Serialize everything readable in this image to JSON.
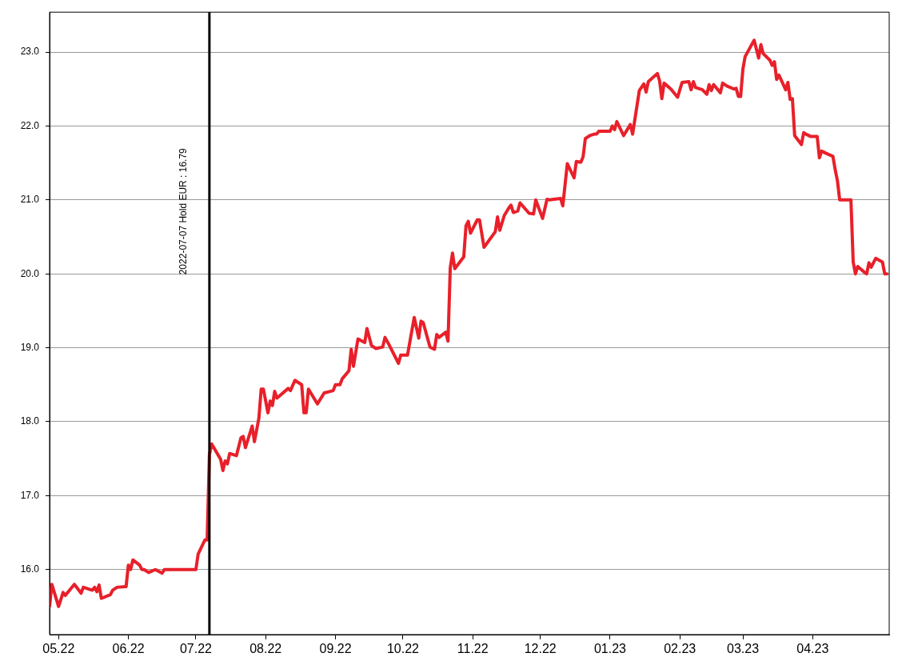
{
  "chart_data": {
    "type": "line",
    "x": [
      "2022-04-27",
      "2022-04-28",
      "2022-05-01",
      "2022-05-03",
      "2022-05-04",
      "2022-05-08",
      "2022-05-10",
      "2022-05-11",
      "2022-05-12",
      "2022-05-16",
      "2022-05-17",
      "2022-05-18",
      "2022-05-19",
      "2022-05-20",
      "2022-05-24",
      "2022-05-25",
      "2022-05-27",
      "2022-05-31",
      "2022-06-01",
      "2022-06-02",
      "2022-06-03",
      "2022-06-06",
      "2022-06-07",
      "2022-06-08",
      "2022-06-10",
      "2022-06-13",
      "2022-06-16",
      "2022-06-17",
      "2022-07-01",
      "2022-07-02",
      "2022-07-05",
      "2022-07-06",
      "2022-07-07",
      "2022-07-08",
      "2022-07-12",
      "2022-07-13",
      "2022-07-14",
      "2022-07-15",
      "2022-07-16",
      "2022-07-19",
      "2022-07-21",
      "2022-07-22",
      "2022-07-23",
      "2022-07-26",
      "2022-07-27",
      "2022-07-29",
      "2022-07-30",
      "2022-07-31",
      "2022-08-02",
      "2022-08-03",
      "2022-08-04",
      "2022-08-05",
      "2022-08-06",
      "2022-08-11",
      "2022-08-12",
      "2022-08-14",
      "2022-08-17",
      "2022-08-18",
      "2022-08-19",
      "2022-08-20",
      "2022-08-24",
      "2022-08-27",
      "2022-08-31",
      "2022-09-01",
      "2022-09-03",
      "2022-09-04",
      "2022-09-07",
      "2022-09-08",
      "2022-09-09",
      "2022-09-11",
      "2022-09-14",
      "2022-09-15",
      "2022-09-17",
      "2022-09-19",
      "2022-09-22",
      "2022-09-23",
      "2022-09-25",
      "2022-09-29",
      "2022-09-30",
      "2022-10-03",
      "2022-10-06",
      "2022-10-08",
      "2022-10-09",
      "2022-10-10",
      "2022-10-13",
      "2022-10-15",
      "2022-10-16",
      "2022-10-17",
      "2022-10-20",
      "2022-10-21",
      "2022-10-22",
      "2022-10-23",
      "2022-10-24",
      "2022-10-28",
      "2022-10-29",
      "2022-10-30",
      "2022-10-31",
      "2022-11-03",
      "2022-11-04",
      "2022-11-06",
      "2022-11-11",
      "2022-11-12",
      "2022-11-13",
      "2022-11-15",
      "2022-11-17",
      "2022-11-18",
      "2022-11-19",
      "2022-11-21",
      "2022-11-22",
      "2022-11-26",
      "2022-11-28",
      "2022-11-29",
      "2022-12-02",
      "2022-12-04",
      "2022-12-05",
      "2022-12-10",
      "2022-12-11",
      "2022-12-13",
      "2022-12-16",
      "2022-12-17",
      "2022-12-19",
      "2022-12-20",
      "2022-12-21",
      "2022-12-23",
      "2022-12-25",
      "2022-12-26",
      "2022-12-27",
      "2023-01-01",
      "2023-01-02",
      "2023-01-03",
      "2023-01-04",
      "2023-01-07",
      "2023-01-10",
      "2023-01-11",
      "2023-01-14",
      "2023-01-16",
      "2023-01-17",
      "2023-01-18",
      "2023-01-22",
      "2023-01-23",
      "2023-01-24",
      "2023-01-25",
      "2023-01-28",
      "2023-01-31",
      "2023-02-02",
      "2023-02-05",
      "2023-02-06",
      "2023-02-07",
      "2023-02-08",
      "2023-02-11",
      "2023-02-13",
      "2023-02-14",
      "2023-02-15",
      "2023-02-16",
      "2023-02-19",
      "2023-02-20",
      "2023-02-22",
      "2023-02-25",
      "2023-02-26",
      "2023-02-27",
      "2023-02-28",
      "2023-03-01",
      "2023-03-02",
      "2023-03-06",
      "2023-03-08",
      "2023-03-09",
      "2023-03-10",
      "2023-03-13",
      "2023-03-14",
      "2023-03-15",
      "2023-03-16",
      "2023-03-17",
      "2023-03-20",
      "2023-03-21",
      "2023-03-22",
      "2023-03-23",
      "2023-03-24",
      "2023-03-27",
      "2023-03-28",
      "2023-03-29",
      "2023-03-31",
      "2023-04-03",
      "2023-04-04",
      "2023-04-05",
      "2023-04-07",
      "2023-04-10",
      "2023-04-11",
      "2023-04-12",
      "2023-04-13",
      "2023-04-18",
      "2023-04-19",
      "2023-04-20",
      "2023-04-21",
      "2023-04-24",
      "2023-04-25",
      "2023-04-26",
      "2023-04-27",
      "2023-04-29",
      "2023-05-02",
      "2023-05-03",
      "2023-05-04"
    ],
    "series": [
      {
        "color": "#e8202a",
        "values": [
          15.5,
          15.8,
          15.5,
          15.69,
          15.65,
          15.8,
          15.72,
          15.68,
          15.76,
          15.72,
          15.76,
          15.7,
          15.79,
          15.61,
          15.66,
          15.72,
          15.76,
          15.77,
          16.06,
          16.0,
          16.13,
          16.06,
          16.0,
          16.0,
          15.96,
          16.0,
          15.95,
          16.0,
          16.0,
          16.21,
          16.4,
          16.4,
          17.55,
          17.7,
          17.49,
          17.34,
          17.47,
          17.43,
          17.57,
          17.54,
          17.78,
          17.8,
          17.65,
          17.94,
          17.73,
          18.05,
          18.44,
          18.44,
          18.12,
          18.28,
          18.22,
          18.41,
          18.32,
          18.45,
          18.42,
          18.56,
          18.5,
          18.12,
          18.12,
          18.44,
          18.24,
          18.39,
          18.42,
          18.5,
          18.5,
          18.58,
          18.69,
          18.98,
          18.75,
          19.12,
          19.07,
          19.26,
          19.03,
          18.99,
          19.01,
          19.14,
          19.03,
          18.79,
          18.9,
          18.9,
          19.41,
          19.13,
          19.36,
          19.34,
          19.01,
          18.98,
          19.18,
          19.14,
          19.21,
          19.09,
          20.08,
          20.28,
          20.07,
          20.23,
          20.65,
          20.71,
          20.55,
          20.73,
          20.73,
          20.36,
          20.57,
          20.77,
          20.59,
          20.79,
          20.89,
          20.93,
          20.83,
          20.85,
          20.96,
          20.82,
          20.81,
          21.0,
          20.75,
          21.01,
          21.0,
          21.02,
          20.92,
          21.49,
          21.3,
          21.52,
          21.51,
          21.58,
          21.83,
          21.87,
          21.89,
          21.89,
          21.93,
          21.93,
          22.0,
          21.95,
          22.06,
          21.87,
          22.02,
          21.89,
          22.48,
          22.57,
          22.46,
          22.6,
          22.71,
          22.61,
          22.37,
          22.58,
          22.5,
          22.39,
          22.59,
          22.6,
          22.49,
          22.6,
          22.52,
          22.49,
          22.43,
          22.56,
          22.48,
          22.56,
          22.45,
          22.58,
          22.54,
          22.5,
          22.51,
          22.4,
          22.4,
          22.77,
          22.94,
          23.16,
          22.92,
          23.1,
          22.98,
          22.89,
          22.82,
          22.87,
          22.63,
          22.69,
          22.49,
          22.59,
          22.36,
          22.37,
          21.87,
          21.75,
          21.91,
          21.89,
          21.86,
          21.86,
          21.57,
          21.66,
          21.63,
          21.59,
          21.41,
          21.26,
          21.0,
          21.0,
          20.16,
          20.0,
          20.1,
          20.02,
          20.0,
          20.15,
          20.09,
          20.21,
          20.16,
          20.0,
          20.0
        ]
      }
    ],
    "xlim": [
      "2022-04-27",
      "2023-05-05"
    ],
    "xticks": [
      {
        "value": "2022-05-01",
        "label": "05.22"
      },
      {
        "value": "2022-06-01",
        "label": "06.22"
      },
      {
        "value": "2022-07-01",
        "label": "07.22"
      },
      {
        "value": "2022-08-01",
        "label": "08.22"
      },
      {
        "value": "2022-09-01",
        "label": "09.22"
      },
      {
        "value": "2022-10-01",
        "label": "10.22"
      },
      {
        "value": "2022-11-01",
        "label": "11.22"
      },
      {
        "value": "2022-12-01",
        "label": "12.22"
      },
      {
        "value": "2023-01-01",
        "label": "01.23"
      },
      {
        "value": "2023-02-01",
        "label": "02.23"
      },
      {
        "value": "2023-03-01",
        "label": "03.23"
      },
      {
        "value": "2023-04-01",
        "label": "04.23"
      }
    ],
    "ylim": [
      15.12,
      23.54
    ],
    "yticks": [
      {
        "value": 16,
        "label": "16.0"
      },
      {
        "value": 17,
        "label": "17.0"
      },
      {
        "value": 18,
        "label": "18.0"
      },
      {
        "value": 19,
        "label": "19.0"
      },
      {
        "value": 20,
        "label": "20.0"
      },
      {
        "value": 21,
        "label": "21.0"
      },
      {
        "value": 22,
        "label": "22.0"
      },
      {
        "value": 23,
        "label": "23.0"
      }
    ],
    "grid": "y",
    "line_style": "solid",
    "ref_lines": [
      {
        "axis": "x",
        "value": "2022-07-07",
        "label": "2022-07-07 Hold EUR : 16.79",
        "color": "#000000",
        "line_style": "solid"
      }
    ]
  }
}
